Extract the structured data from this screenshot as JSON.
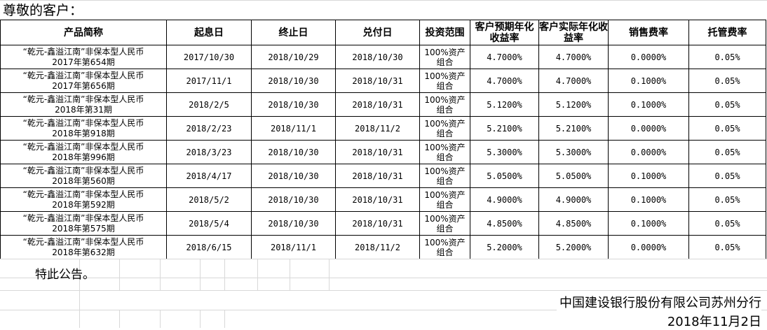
{
  "greeting": "尊敬的客户：",
  "table": {
    "headers": [
      "产品简称",
      "起息日",
      "终止日",
      "兑付日",
      "投资范围",
      "客户预期年化收益率",
      "客户实际年化收益率",
      "销售费率",
      "托管费率"
    ],
    "rows": [
      {
        "name_line1": "“乾元-鑫溢江南”非保本型人民币",
        "name_line2": "2017年第654期",
        "start": "2017/10/30",
        "end": "2018/10/29",
        "pay": "2018/10/30",
        "scope_line1": "100%资产",
        "scope_line2": "组合",
        "expected": "4.7000%",
        "actual": "4.7000%",
        "sales_fee": "0.0000%",
        "custody_fee": "0.05%"
      },
      {
        "name_line1": "“乾元-鑫溢江南”非保本型人民币",
        "name_line2": "2017年第656期",
        "start": "2017/11/1",
        "end": "2018/10/30",
        "pay": "2018/10/31",
        "scope_line1": "100%资产",
        "scope_line2": "组合",
        "expected": "4.7000%",
        "actual": "4.7000%",
        "sales_fee": "0.1000%",
        "custody_fee": "0.05%"
      },
      {
        "name_line1": "“乾元-鑫溢江南”非保本型人民币",
        "name_line2": "2018年第31期",
        "start": "2018/2/5",
        "end": "2018/10/30",
        "pay": "2018/10/31",
        "scope_line1": "100%资产",
        "scope_line2": "组合",
        "expected": "5.1200%",
        "actual": "5.1200%",
        "sales_fee": "0.1000%",
        "custody_fee": "0.05%"
      },
      {
        "name_line1": "“乾元-鑫溢江南”非保本型人民币",
        "name_line2": "2018年第918期",
        "start": "2018/2/23",
        "end": "2018/11/1",
        "pay": "2018/11/2",
        "scope_line1": "100%资产",
        "scope_line2": "组合",
        "expected": "5.2100%",
        "actual": "5.2100%",
        "sales_fee": "0.0000%",
        "custody_fee": "0.05%"
      },
      {
        "name_line1": "“乾元-鑫溢江南”非保本型人民币",
        "name_line2": "2018年第996期",
        "start": "2018/3/23",
        "end": "2018/10/30",
        "pay": "2018/10/31",
        "scope_line1": "100%资产",
        "scope_line2": "组合",
        "expected": "5.3000%",
        "actual": "5.3000%",
        "sales_fee": "0.0000%",
        "custody_fee": "0.05%"
      },
      {
        "name_line1": "“乾元-鑫溢江南”非保本型人民币",
        "name_line2": "2018年第560期",
        "start": "2018/4/17",
        "end": "2018/10/30",
        "pay": "2018/10/31",
        "scope_line1": "100%资产",
        "scope_line2": "组合",
        "expected": "5.0500%",
        "actual": "5.0500%",
        "sales_fee": "0.1000%",
        "custody_fee": "0.05%"
      },
      {
        "name_line1": "“乾元-鑫溢江南”非保本型人民币",
        "name_line2": "2018年第592期",
        "start": "2018/5/2",
        "end": "2018/10/30",
        "pay": "2018/10/31",
        "scope_line1": "100%资产",
        "scope_line2": "组合",
        "expected": "4.9000%",
        "actual": "4.9000%",
        "sales_fee": "0.1000%",
        "custody_fee": "0.05%"
      },
      {
        "name_line1": "“乾元-鑫溢江南”非保本型人民币",
        "name_line2": "2018年第575期",
        "start": "2018/5/4",
        "end": "2018/10/30",
        "pay": "2018/10/31",
        "scope_line1": "100%资产",
        "scope_line2": "组合",
        "expected": "4.8500%",
        "actual": "4.8500%",
        "sales_fee": "0.1000%",
        "custody_fee": "0.05%"
      },
      {
        "name_line1": "“乾元-鑫溢江南”非保本型人民币",
        "name_line2": "2018年第632期",
        "start": "2018/6/15",
        "end": "2018/11/1",
        "pay": "2018/11/2",
        "scope_line1": "100%资产",
        "scope_line2": "组合",
        "expected": "5.2000%",
        "actual": "5.2000%",
        "sales_fee": "0.0000%",
        "custody_fee": "0.05%"
      }
    ]
  },
  "notice": "特此公告。",
  "issuer": "中国建设银行股份有限公司苏州分行",
  "date": "2018年11月2日"
}
